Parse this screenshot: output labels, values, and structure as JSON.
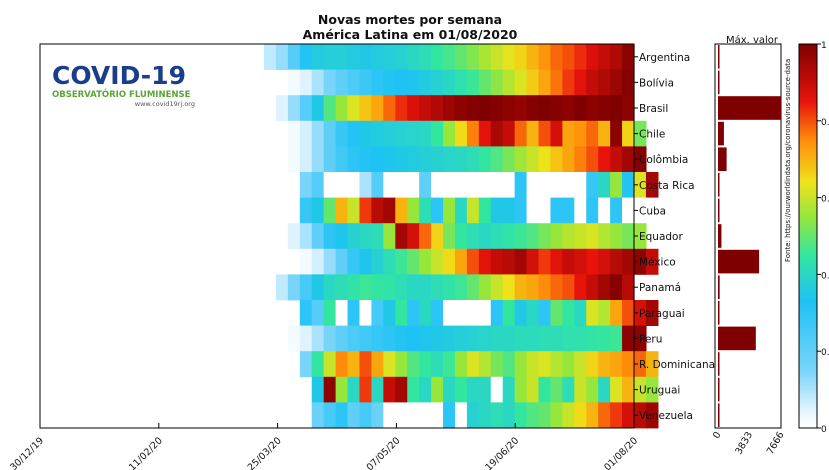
{
  "title": "Novas mortes por semana",
  "subtitle": "América Latina em 01/08/2020",
  "logo": {
    "name": "COVID-19",
    "tagline": "OBSERVATÓRIO FLUMINENSE",
    "url": "www.covid19rj.org"
  },
  "source_note": "Fonte: https://ourworldindata.org/coronavirus-source-data",
  "max_panel_title": "Máx. valor",
  "colors": {
    "bar": "#7f0000",
    "frame": "#000000"
  },
  "chart_data": {
    "type": "heatmap",
    "x_tick_labels": [
      "30/12/19",
      "11/02/20",
      "25/03/20",
      "07/05/20",
      "19/06/20",
      "01/08/20"
    ],
    "countries": [
      "Argentina",
      "Bolívia",
      "Brasil",
      "Chile",
      "Colômbia",
      "Costa Rica",
      "Cuba",
      "Equador",
      "México",
      "Panamá",
      "Paraguai",
      "Peru",
      "R. Dominicana",
      "Uruguai",
      "Venezuela"
    ],
    "max_value_axis": {
      "ticks": [
        0,
        3833,
        7666
      ],
      "range": [
        0,
        7666
      ]
    },
    "max_values": [
      150,
      60,
      7666,
      720,
      1050,
      25,
      8,
      420,
      5000,
      200,
      10,
      4600,
      160,
      8,
      50
    ],
    "colorbar": {
      "ticks": [
        "0",
        "0.",
        "0.",
        "0.",
        "0.",
        "1"
      ],
      "range": [
        0,
        1
      ],
      "colormap": "jet"
    },
    "weeks_shown": 31,
    "series": [
      {
        "name": "Argentina",
        "start": 0,
        "values": [
          0.08,
          0.12,
          0.22,
          0.32,
          0.36,
          0.37,
          0.37,
          0.36,
          0.35,
          0.36,
          0.37,
          0.38,
          0.4,
          0.42,
          0.45,
          0.47,
          0.5,
          0.53,
          0.57,
          0.6,
          0.63,
          0.66,
          0.7,
          0.74,
          0.78,
          0.8,
          0.83,
          0.87,
          0.9,
          0.93,
          0.98
        ]
      },
      {
        "name": "Bolívia",
        "start": 2,
        "values": [
          0.02,
          0.05,
          0.1,
          0.15,
          0.2,
          0.24,
          0.27,
          0.3,
          0.32,
          0.33,
          0.34,
          0.36,
          0.38,
          0.4,
          0.43,
          0.46,
          0.5,
          0.54,
          0.58,
          0.62,
          0.67,
          0.72,
          0.77,
          0.82,
          0.86,
          0.9,
          0.93,
          0.96,
          0.99
        ]
      },
      {
        "name": "Brasil",
        "start": 1,
        "values": [
          0.05,
          0.12,
          0.22,
          0.35,
          0.48,
          0.55,
          0.62,
          0.68,
          0.72,
          0.78,
          0.83,
          0.87,
          0.9,
          0.93,
          0.96,
          0.98,
          0.99,
          1.0,
          0.99,
          0.98,
          0.97,
          0.99,
          1.0,
          0.99,
          0.98,
          1.0,
          0.98,
          0.99,
          1.0,
          0.98
        ]
      },
      {
        "name": "Chile",
        "start": 2,
        "values": [
          0.02,
          0.06,
          0.12,
          0.2,
          0.28,
          0.32,
          0.35,
          0.36,
          0.37,
          0.38,
          0.39,
          0.4,
          0.45,
          0.55,
          0.65,
          0.76,
          0.86,
          0.94,
          0.9,
          0.78,
          0.7,
          0.8,
          0.88,
          0.72,
          0.74,
          0.78,
          0.7,
          0.98,
          0.66,
          0.52
        ]
      },
      {
        "name": "Colômbia",
        "start": 2,
        "values": [
          0.02,
          0.06,
          0.12,
          0.2,
          0.26,
          0.3,
          0.32,
          0.33,
          0.34,
          0.35,
          0.36,
          0.37,
          0.38,
          0.39,
          0.4,
          0.42,
          0.45,
          0.48,
          0.52,
          0.56,
          0.6,
          0.64,
          0.68,
          0.72,
          0.76,
          0.8,
          0.85,
          0.9,
          0.95,
          0.99
        ]
      },
      {
        "name": "Costa Rica",
        "start": 3,
        "values": [
          0.15,
          0.22,
          0.0,
          0.0,
          0.0,
          0.1,
          0.22,
          0.0,
          0.0,
          0.0,
          0.2,
          0.0,
          0.0,
          0.0,
          0.0,
          0.0,
          0.0,
          0.0,
          0.3,
          0.0,
          0.0,
          0.0,
          0.0,
          0.0,
          0.28,
          0.4,
          0.55,
          0.32,
          0.62,
          0.95
        ]
      },
      {
        "name": "Cuba",
        "start": 3,
        "values": [
          0.28,
          0.35,
          0.5,
          0.7,
          0.6,
          0.82,
          0.92,
          0.95,
          0.7,
          0.55,
          0.42,
          0.3,
          0.55,
          0.4,
          0.6,
          0.45,
          0.35,
          0.35,
          0.3,
          0.0,
          0.0,
          0.3,
          0.3,
          0.0,
          0.3,
          0.0,
          0.3,
          0.0,
          0.0,
          0.0
        ]
      },
      {
        "name": "Equador",
        "start": 2,
        "values": [
          0.05,
          0.1,
          0.2,
          0.3,
          0.34,
          0.38,
          0.4,
          0.42,
          0.55,
          0.95,
          0.88,
          0.78,
          0.66,
          0.52,
          0.45,
          0.42,
          0.4,
          0.42,
          0.44,
          0.46,
          0.48,
          0.52,
          0.55,
          0.58,
          0.6,
          0.62,
          0.58,
          0.55,
          0.52,
          0.55
        ]
      },
      {
        "name": "México",
        "start": 3,
        "values": [
          0.02,
          0.06,
          0.12,
          0.2,
          0.28,
          0.34,
          0.38,
          0.42,
          0.46,
          0.5,
          0.55,
          0.6,
          0.65,
          0.72,
          0.8,
          0.86,
          0.9,
          0.92,
          0.95,
          0.88,
          0.82,
          0.86,
          0.9,
          0.88,
          0.85,
          0.88,
          0.92,
          0.95,
          0.98,
          0.9
        ]
      },
      {
        "name": "Panamá",
        "start": 1,
        "values": [
          0.08,
          0.15,
          0.25,
          0.35,
          0.4,
          0.42,
          0.44,
          0.46,
          0.45,
          0.44,
          0.42,
          0.4,
          0.4,
          0.42,
          0.44,
          0.46,
          0.5,
          0.55,
          0.6,
          0.64,
          0.7,
          0.72,
          0.75,
          0.78,
          0.8,
          0.85,
          0.9,
          0.95,
          0.99,
          0.92
        ]
      },
      {
        "name": "Paraguai",
        "start": 3,
        "values": [
          0.3,
          0.22,
          0.45,
          0.0,
          0.3,
          0.0,
          0.25,
          0.35,
          0.45,
          0.3,
          0.4,
          0.3,
          0.0,
          0.0,
          0.0,
          0.0,
          0.3,
          0.45,
          0.35,
          0.4,
          0.3,
          0.5,
          0.45,
          0.4,
          0.62,
          0.58,
          0.72,
          0.8,
          0.88,
          0.95
        ]
      },
      {
        "name": "Peru",
        "start": 2,
        "values": [
          0.02,
          0.05,
          0.1,
          0.15,
          0.2,
          0.24,
          0.26,
          0.28,
          0.3,
          0.32,
          0.33,
          0.34,
          0.35,
          0.36,
          0.37,
          0.38,
          0.39,
          0.4,
          0.4,
          0.41,
          0.41,
          0.42,
          0.42,
          0.43,
          0.43,
          0.44,
          0.45,
          0.46,
          0.98,
          0.98
        ]
      },
      {
        "name": "R. Dominicana",
        "start": 3,
        "values": [
          0.15,
          0.45,
          0.6,
          0.75,
          0.7,
          0.8,
          0.72,
          0.62,
          0.55,
          0.48,
          0.45,
          0.42,
          0.46,
          0.55,
          0.62,
          0.58,
          0.52,
          0.48,
          0.55,
          0.6,
          0.62,
          0.58,
          0.55,
          0.6,
          0.66,
          0.7,
          0.72,
          0.75,
          0.78,
          0.7
        ]
      },
      {
        "name": "Uruguai",
        "start": 4,
        "values": [
          0.35,
          0.98,
          0.55,
          0.4,
          0.82,
          0.4,
          0.9,
          0.95,
          0.45,
          0.4,
          0.55,
          0.4,
          0.45,
          0.4,
          0.4,
          0.0,
          0.4,
          0.55,
          0.6,
          0.45,
          0.5,
          0.42,
          0.6,
          0.55,
          0.4,
          0.62,
          0.7,
          0.6,
          0.55
        ]
      },
      {
        "name": "Venezuela",
        "start": 4,
        "values": [
          0.18,
          0.25,
          0.3,
          0.2,
          0.25,
          0.18,
          0.0,
          0.0,
          0.0,
          0.0,
          0.0,
          0.3,
          0.0,
          0.38,
          0.4,
          0.42,
          0.4,
          0.45,
          0.48,
          0.5,
          0.55,
          0.6,
          0.65,
          0.7,
          0.78,
          0.82,
          0.88,
          0.92,
          0.96
        ]
      }
    ]
  }
}
